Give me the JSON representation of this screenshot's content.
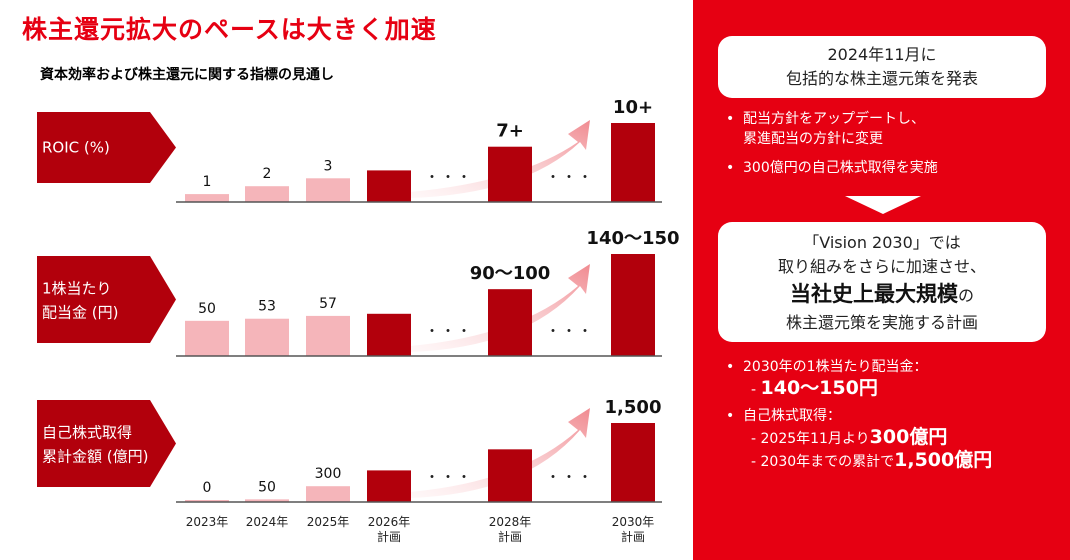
{
  "title": "株主還元拡大のペースは大きく加速",
  "subtitle": "資本効率および株主還元に関する指標の見通し",
  "chart_data": [
    {
      "type": "bar",
      "label": "ROIC (%)",
      "categories": [
        "2023年",
        "2024年",
        "2025年",
        "2026年計画",
        "2028年計画",
        "2030年計画"
      ],
      "values": [
        1,
        2,
        3,
        4,
        7,
        10
      ],
      "data_labels": [
        "1",
        "2",
        "3",
        "",
        "7+",
        "10+"
      ]
    },
    {
      "type": "bar",
      "label": "1株当たり配当金 (円)",
      "categories": [
        "2023年",
        "2024年",
        "2025年",
        "2026年計画",
        "2028年計画",
        "2030年計画"
      ],
      "values": [
        50,
        53,
        57,
        60,
        95,
        145
      ],
      "data_labels": [
        "50",
        "53",
        "57",
        "",
        "90〜100",
        "140〜150"
      ]
    },
    {
      "type": "bar",
      "label": "自己株式取得累計金額 (億円)",
      "categories": [
        "2023年",
        "2024年",
        "2025年",
        "2026年計画",
        "2028年計画",
        "2030年計画"
      ],
      "values": [
        0,
        50,
        300,
        600,
        1000,
        1500
      ],
      "data_labels": [
        "0",
        "50",
        "300",
        "",
        "",
        "1,500"
      ]
    }
  ],
  "x_labels": [
    [
      "2023年"
    ],
    [
      "2024年"
    ],
    [
      "2025年"
    ],
    [
      "2026年",
      "計画"
    ],
    [
      "2028年",
      "計画"
    ],
    [
      "2030年",
      "計画"
    ]
  ],
  "dots": "・・・",
  "colors": {
    "red": "#e60012",
    "dark_red": "#b2000c",
    "pink": "#f5b5ba",
    "arrow": "#f08a90"
  },
  "panel": {
    "box1_line1": "2024年11月に",
    "box1_line2": "包括的な株主還元策を発表",
    "bullets1": [
      [
        "配当方針をアップデートし、",
        "累進配当の方針に変更"
      ],
      [
        "300億円の自己株式取得を実施"
      ]
    ],
    "box2_line1": "「Vision 2030」では",
    "box2_line2": "取り組みをさらに加速させ、",
    "box2_emph": "当社史上最大規模",
    "box2_emph_suffix": "の",
    "box2_line4": "株主還元策を実施する計画",
    "dividend_title": "2030年の1株当たり配当金：",
    "dividend_prefix": "- ",
    "dividend_value": "140〜150円",
    "buyback_title": "自己株式取得：",
    "buyback1_prefix": "- 2025年11月より",
    "buyback1_value": "300億円",
    "buyback2_prefix": "- 2030年までの累計で",
    "buyback2_value": "1,500億円",
    "bullet_symbol": "•"
  }
}
